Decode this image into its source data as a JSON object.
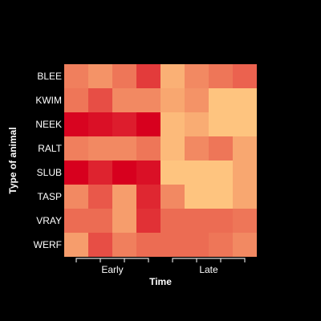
{
  "chart_data": {
    "type": "heatmap",
    "title": "",
    "xlabel": "Time",
    "ylabel": "Type of animal",
    "rows": [
      "BLEE",
      "KWIM",
      "NEEK",
      "RALT",
      "SLUB",
      "TASP",
      "VRAY",
      "WERF"
    ],
    "columns": 8,
    "column_groups": [
      {
        "label": "Early",
        "columns": [
          0,
          1,
          2,
          3
        ]
      },
      {
        "label": "Late",
        "columns": [
          4,
          5,
          6,
          7
        ]
      }
    ],
    "color_scale": {
      "low": "#fec47f",
      "high": "#d7001e"
    },
    "values": [
      [
        0.35,
        0.25,
        0.4,
        0.7,
        0.1,
        0.3,
        0.4,
        0.5
      ],
      [
        0.4,
        0.6,
        0.3,
        0.3,
        0.15,
        0.25,
        0.0,
        0.0
      ],
      [
        0.98,
        0.92,
        0.85,
        1.0,
        0.05,
        0.12,
        0.0,
        0.0
      ],
      [
        0.35,
        0.3,
        0.3,
        0.4,
        0.05,
        0.3,
        0.4,
        0.15
      ],
      [
        1.0,
        0.82,
        1.0,
        0.92,
        0.0,
        0.0,
        0.0,
        0.15
      ],
      [
        0.3,
        0.55,
        0.2,
        0.8,
        0.3,
        0.0,
        0.0,
        0.15
      ],
      [
        0.45,
        0.45,
        0.2,
        0.75,
        0.45,
        0.45,
        0.45,
        0.4
      ],
      [
        0.2,
        0.6,
        0.35,
        0.45,
        0.45,
        0.45,
        0.4,
        0.3
      ]
    ]
  }
}
